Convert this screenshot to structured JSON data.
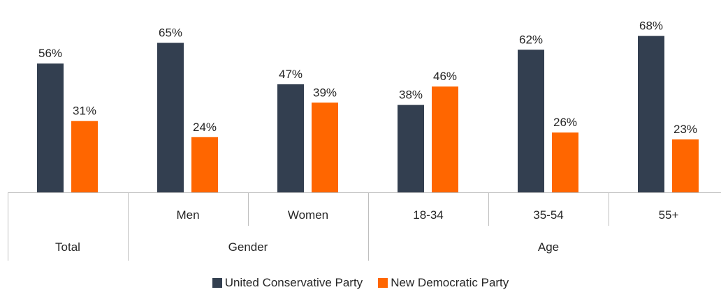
{
  "chart_data": {
    "type": "bar",
    "categories": [
      "Total",
      "Men",
      "Women",
      "18-34",
      "35-54",
      "55+"
    ],
    "groups": [
      {
        "label": "Gender",
        "members": [
          "Men",
          "Women"
        ]
      },
      {
        "label": "Age",
        "members": [
          "18-34",
          "35-54",
          "55+"
        ]
      }
    ],
    "series": [
      {
        "name": "United Conservative Party",
        "color": "#333f50",
        "values": [
          56,
          65,
          47,
          38,
          62,
          68
        ]
      },
      {
        "name": "New Democratic Party",
        "color": "#ff6600",
        "values": [
          31,
          24,
          39,
          46,
          26,
          23
        ]
      }
    ],
    "value_suffix": "%",
    "ylim": [
      0,
      75
    ],
    "grid": false,
    "legend_position": "bottom"
  },
  "legend": {
    "items": [
      {
        "label": "United Conservative Party",
        "color": "#333f50"
      },
      {
        "label": "New Democratic Party",
        "color": "#ff6600"
      }
    ]
  }
}
